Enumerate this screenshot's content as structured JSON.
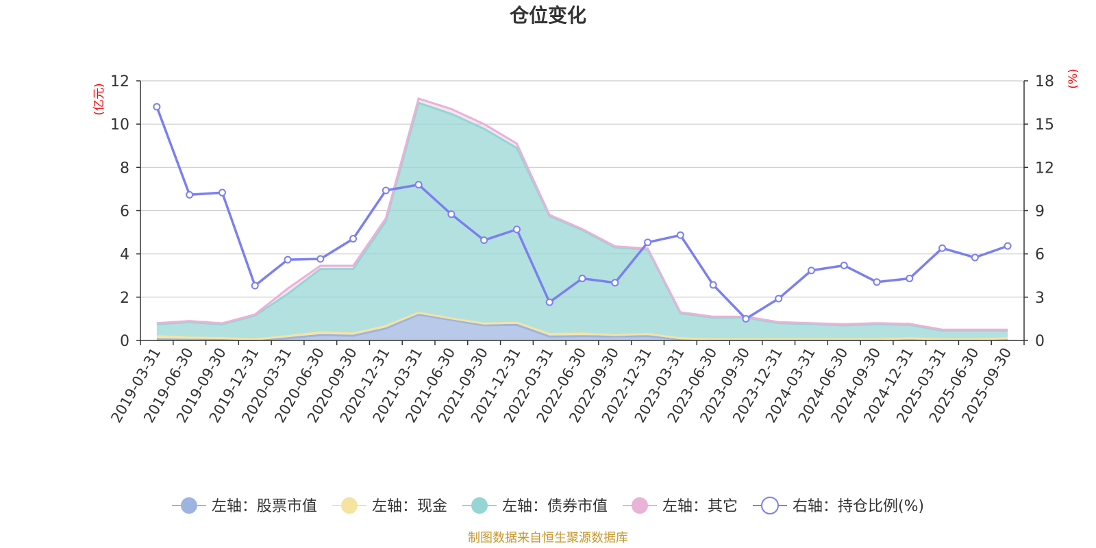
{
  "title": "仓位变化",
  "left_axis_unit": "(亿元)",
  "right_axis_unit": "(%)",
  "source_note": "制图数据来自恒生聚源数据库",
  "colors": {
    "stock": "#9db4e0",
    "cash": "#f6e3a0",
    "bond": "#95d5d4",
    "other": "#e9b2d6",
    "ratio": "#7b7ff0",
    "axis_unit": "#ff0000",
    "source": "#c8962a",
    "grid": "#cccccc"
  },
  "chart_data": {
    "type": "area",
    "categories": [
      "2019-03-31",
      "2019-06-30",
      "2019-09-30",
      "2019-12-31",
      "2020-03-31",
      "2020-06-30",
      "2020-09-30",
      "2020-12-31",
      "2021-03-31",
      "2021-06-30",
      "2021-09-30",
      "2021-12-31",
      "2022-03-31",
      "2022-06-30",
      "2022-09-30",
      "2022-12-31",
      "2023-03-31",
      "2023-06-30",
      "2023-09-30",
      "2023-12-31",
      "2024-03-31",
      "2024-06-30",
      "2024-09-30",
      "2024-12-31",
      "2025-03-31",
      "2025-06-30",
      "2025-09-30"
    ],
    "left_axis": {
      "min": 0,
      "max": 12,
      "ticks": [
        0,
        2,
        4,
        6,
        8,
        10,
        12
      ]
    },
    "right_axis": {
      "min": 0,
      "max": 18,
      "ticks": [
        0,
        3,
        6,
        9,
        12,
        15,
        18
      ]
    },
    "stacked_series": [
      {
        "name": "左轴：股票市值",
        "legend_icon": "filled-circle",
        "values": [
          0.05,
          0.03,
          0.03,
          0.02,
          0.1,
          0.25,
          0.22,
          0.55,
          1.2,
          0.95,
          0.7,
          0.72,
          0.18,
          0.2,
          0.18,
          0.2,
          0.05,
          0.02,
          0.02,
          0.02,
          0.02,
          0.02,
          0.02,
          0.05,
          0.02,
          0.02,
          0.05
        ]
      },
      {
        "name": "左轴：现金",
        "legend_icon": "filled-circle",
        "values": [
          0.15,
          0.1,
          0.08,
          0.03,
          0.1,
          0.13,
          0.1,
          0.12,
          0.08,
          0.07,
          0.08,
          0.1,
          0.12,
          0.12,
          0.07,
          0.1,
          0.05,
          0.03,
          0.03,
          0.03,
          0.03,
          0.03,
          0.03,
          0.05,
          0.03,
          0.03,
          0.05
        ]
      },
      {
        "name": "左轴：债券市值",
        "legend_icon": "filled-circle",
        "values": [
          0.55,
          0.72,
          0.63,
          1.1,
          1.95,
          2.92,
          2.98,
          4.83,
          9.7,
          9.45,
          9.0,
          8.08,
          5.45,
          4.78,
          4.05,
          3.9,
          1.15,
          1.0,
          1.0,
          0.75,
          0.7,
          0.65,
          0.7,
          0.62,
          0.4,
          0.4,
          0.35
        ]
      },
      {
        "name": "左轴：其它",
        "legend_icon": "filled-circle",
        "values": [
          0.05,
          0.05,
          0.05,
          0.05,
          0.25,
          0.15,
          0.15,
          0.15,
          0.2,
          0.23,
          0.22,
          0.2,
          0.05,
          0.05,
          0.05,
          0.05,
          0.05,
          0.05,
          0.05,
          0.05,
          0.05,
          0.05,
          0.05,
          0.05,
          0.05,
          0.05,
          0.05
        ]
      }
    ],
    "line_series": [
      {
        "name": "右轴：持仓比例(%)",
        "legend_icon": "hollow-circle",
        "axis": "right",
        "values": [
          16.2,
          10.1,
          10.25,
          3.8,
          5.6,
          5.65,
          7.05,
          10.4,
          10.8,
          8.75,
          6.95,
          7.7,
          2.65,
          4.3,
          4.0,
          6.8,
          7.3,
          3.85,
          1.5,
          2.9,
          4.85,
          5.2,
          4.05,
          4.3,
          6.4,
          5.75,
          6.55
        ]
      }
    ],
    "grid": true,
    "legend_position": "bottom"
  }
}
